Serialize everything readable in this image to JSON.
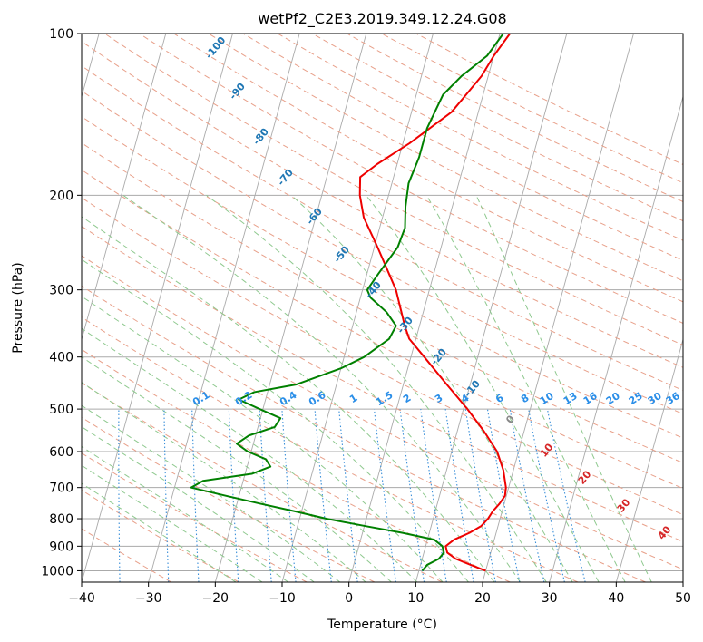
{
  "chart_data": {
    "type": "line",
    "title": "wetPf2_C2E3.2019.349.12.24.G08",
    "xlabel": "Temperature (°C)",
    "ylabel": "Pressure (hPa)",
    "xlim": [
      -40,
      50
    ],
    "ylim": [
      1050,
      100
    ],
    "y_scale": "log",
    "grid": true,
    "x_ticks": [
      -40,
      -30,
      -20,
      -10,
      0,
      10,
      20,
      30,
      40,
      50
    ],
    "y_ticks": [
      100,
      200,
      300,
      400,
      500,
      600,
      700,
      800,
      900,
      1000
    ],
    "series": [
      {
        "color": "#ee0000",
        "points": [
          {
            "p": 1000,
            "t": 20.0
          },
          {
            "p": 975,
            "t": 17.5
          },
          {
            "p": 950,
            "t": 15.0
          },
          {
            "p": 925,
            "t": 13.5
          },
          {
            "p": 900,
            "t": 13.0
          },
          {
            "p": 875,
            "t": 14.0
          },
          {
            "p": 850,
            "t": 16.0
          },
          {
            "p": 825,
            "t": 17.5
          },
          {
            "p": 800,
            "t": 18.2
          },
          {
            "p": 775,
            "t": 18.6
          },
          {
            "p": 750,
            "t": 19.3
          },
          {
            "p": 725,
            "t": 19.8
          },
          {
            "p": 700,
            "t": 19.6
          },
          {
            "p": 650,
            "t": 18.5
          },
          {
            "p": 600,
            "t": 16.8
          },
          {
            "p": 550,
            "t": 14.0
          },
          {
            "p": 500,
            "t": 10.6
          },
          {
            "p": 450,
            "t": 6.5
          },
          {
            "p": 400,
            "t": 2.0
          },
          {
            "p": 370,
            "t": -1.0
          },
          {
            "p": 350,
            "t": -2.2
          },
          {
            "p": 300,
            "t": -5.0
          },
          {
            "p": 250,
            "t": -9.5
          },
          {
            "p": 220,
            "t": -12.8
          },
          {
            "p": 200,
            "t": -14.3
          },
          {
            "p": 185,
            "t": -15.0
          },
          {
            "p": 175,
            "t": -13.0
          },
          {
            "p": 160,
            "t": -9.0
          },
          {
            "p": 140,
            "t": -4.0
          },
          {
            "p": 120,
            "t": -1.0
          },
          {
            "p": 110,
            "t": 0.0
          },
          {
            "p": 100,
            "t": 1.5
          }
        ]
      },
      {
        "color": "#008000",
        "points": [
          {
            "p": 1000,
            "t": 10.5
          },
          {
            "p": 975,
            "t": 11.0
          },
          {
            "p": 950,
            "t": 12.5
          },
          {
            "p": 925,
            "t": 13.0
          },
          {
            "p": 900,
            "t": 12.5
          },
          {
            "p": 875,
            "t": 11.0
          },
          {
            "p": 850,
            "t": 6.0
          },
          {
            "p": 825,
            "t": 0.0
          },
          {
            "p": 800,
            "t": -6.0
          },
          {
            "p": 775,
            "t": -11.0
          },
          {
            "p": 750,
            "t": -16.5
          },
          {
            "p": 725,
            "t": -22.0
          },
          {
            "p": 700,
            "t": -27.5
          },
          {
            "p": 680,
            "t": -26.0
          },
          {
            "p": 660,
            "t": -19.0
          },
          {
            "p": 640,
            "t": -16.5
          },
          {
            "p": 620,
            "t": -17.5
          },
          {
            "p": 600,
            "t": -20.5
          },
          {
            "p": 580,
            "t": -22.5
          },
          {
            "p": 560,
            "t": -21.0
          },
          {
            "p": 540,
            "t": -17.5
          },
          {
            "p": 520,
            "t": -17.0
          },
          {
            "p": 500,
            "t": -20.5
          },
          {
            "p": 480,
            "t": -24.0
          },
          {
            "p": 465,
            "t": -22.0
          },
          {
            "p": 450,
            "t": -16.0
          },
          {
            "p": 420,
            "t": -10.0
          },
          {
            "p": 400,
            "t": -7.0
          },
          {
            "p": 370,
            "t": -4.0
          },
          {
            "p": 350,
            "t": -3.5
          },
          {
            "p": 330,
            "t": -5.5
          },
          {
            "p": 310,
            "t": -8.5
          },
          {
            "p": 300,
            "t": -9.3
          },
          {
            "p": 280,
            "t": -8.3
          },
          {
            "p": 250,
            "t": -6.5
          },
          {
            "p": 230,
            "t": -6.2
          },
          {
            "p": 210,
            "t": -7.0
          },
          {
            "p": 190,
            "t": -7.5
          },
          {
            "p": 170,
            "t": -7.0
          },
          {
            "p": 150,
            "t": -7.0
          },
          {
            "p": 130,
            "t": -6.0
          },
          {
            "p": 120,
            "t": -4.0
          },
          {
            "p": 110,
            "t": -1.0
          },
          {
            "p": 100,
            "t": 0.5
          }
        ]
      }
    ],
    "dry_adiabat_labels": [
      "-100",
      "-90",
      "-80",
      "-70",
      "-60",
      "-50",
      "-40",
      "-30",
      "-20",
      "-10"
    ],
    "moist_adiabat_labels": [
      "0",
      "10",
      "20",
      "30",
      "40"
    ],
    "mixing_ratio_labels": [
      "0.1",
      "0.2",
      "0.4",
      "0.6",
      "1",
      "1.5",
      "2",
      "3",
      "4",
      "6",
      "8",
      "10",
      "13",
      "16",
      "20",
      "25",
      "30",
      "36"
    ],
    "mixing_ratio_values": [
      0.1,
      0.2,
      0.4,
      0.6,
      1,
      1.5,
      2,
      3,
      4,
      6,
      8,
      10,
      13,
      16,
      20,
      25,
      30,
      36
    ],
    "colors": {
      "dry_adiabat": "#e8a08a",
      "moist_adiabat": "#8fc98f",
      "mixing_ratio": "#3a8fd9",
      "isotherm": "#aaaaaa",
      "dry_label": "#1f77b4",
      "moist_label": "#d62728",
      "zero_label": "#888888",
      "mix_label": "#2a8ee8"
    }
  }
}
